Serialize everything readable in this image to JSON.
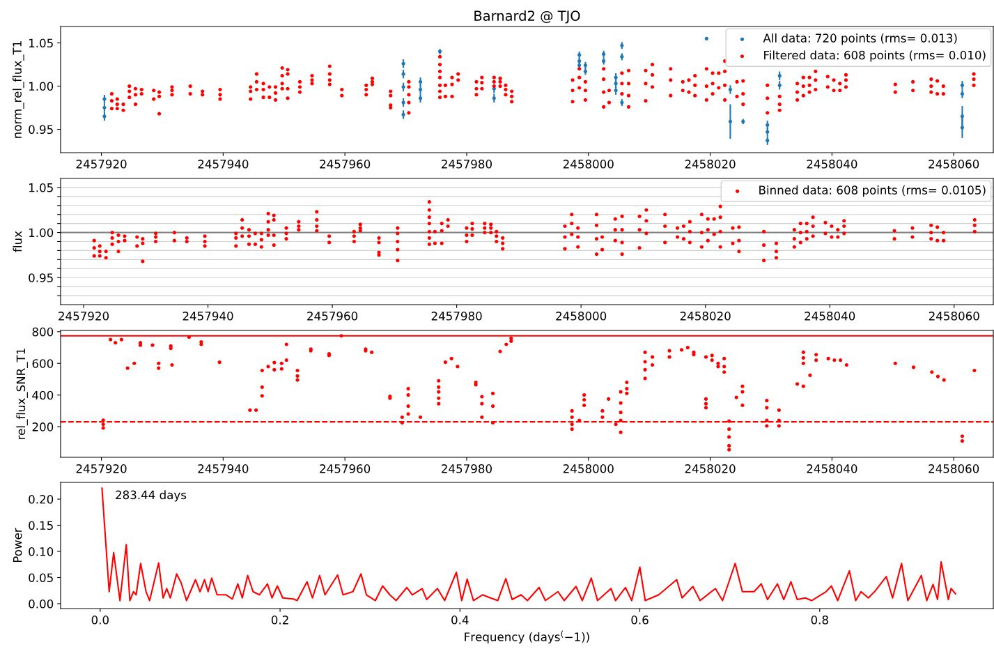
{
  "chart_data": [
    {
      "type": "scatter",
      "title": "Barnard2 @ TJO",
      "ylabel": "norm_rel_flux_T1",
      "xlim": [
        2457913.3,
        2458066.5
      ],
      "ylim": [
        0.923,
        1.069
      ],
      "xticks": [
        2457920,
        2457940,
        2457960,
        2457980,
        2458000,
        2458020,
        2458040,
        2458060
      ],
      "yticks": [
        0.95,
        {
          "value": 1.0,
          "label": "1.00"
        },
        {
          "value": 1.05,
          "label": "1.05"
        }
      ],
      "legend": "top right",
      "marker": "circle",
      "grid": false,
      "series": [
        {
          "name": "All data: 720 points (rms= 0.013)",
          "color": "#1f77b4",
          "x": [
            2457920.5,
            2457920.5,
            2457920.5,
            2457969.6,
            2457969.6,
            2457969.6,
            2457969.6,
            2457969.6,
            2457972.4,
            2457972.4,
            2457972.4,
            2457975.6,
            2457984.5,
            2457984.5,
            2457998.5,
            2457998.5,
            2457998.5,
            2457999.5,
            2457999.5,
            2458002.5,
            2458002.5,
            2458004.5,
            2458004.5,
            2458004.5,
            2458005.5,
            2458005.5,
            2458005.5,
            2458019.4,
            2458023.3,
            2458023.3,
            2458025.4,
            2458029.4,
            2458029.4,
            2458029.4,
            2458031.4,
            2458031.4,
            2458061.4,
            2458061.4,
            2458061.4,
            2458061.4
          ],
          "values": [
            0.985,
            0.975,
            0.965,
            1.026,
            1.014,
            0.999,
            0.981,
            0.967,
            1.005,
            0.996,
            0.986,
            1.04,
            0.997,
            0.986,
            1.036,
            1.029,
            1.024,
            1.024,
            1.017,
            1.037,
            1.029,
            1.01,
            1.003,
            0.995,
            1.047,
            1.034,
            0.981,
            1.055,
            0.996,
            0.959,
            0.959,
            0.955,
            0.947,
            0.937,
            1.012,
            1.001,
            1.001,
            0.991,
            0.965,
            0.952
          ],
          "errors": [
            0.005,
            0.005,
            0.005,
            0.005,
            0.005,
            0.005,
            0.005,
            0.005,
            0.005,
            0.005,
            0.005,
            0.003,
            0.005,
            0.005,
            0.004,
            0.004,
            0.004,
            0.004,
            0.004,
            0.004,
            0.004,
            0.005,
            0.005,
            0.005,
            0.004,
            0.004,
            0.004,
            0.002,
            0.005,
            0.02,
            0.003,
            0.005,
            0.005,
            0.005,
            0.005,
            0.005,
            0.005,
            0.005,
            0.012,
            0.012
          ]
        },
        {
          "name": "Filtered data: 608 points (rms= 0.010)",
          "color": "#ff0000",
          "x": [
            2457921.7,
            2457921.7,
            2457921.7,
            2457922.6,
            2457922.6,
            2457922.6,
            2457923.6,
            2457923.6,
            2457924.6,
            2457924.6,
            2457924.6,
            2457925.6,
            2457925.6,
            2457925.6,
            2457926.6,
            2457926.6,
            2457928.6,
            2457928.6,
            2457929.5,
            2457929.5,
            2457929.5,
            2457931.6,
            2457931.6,
            2457931.6,
            2457934.6,
            2457934.6,
            2457936.6,
            2457936.6,
            2457939.5,
            2457939.5,
            2457939.5,
            2457944.5,
            2457944.5,
            2457944.5,
            2457945.5,
            2457945.5,
            2457945.5,
            2457946.6,
            2457946.6,
            2457946.6,
            2457947.6,
            2457947.6,
            2457948.6,
            2457948.6,
            2457948.6,
            2457949.7,
            2457949.7,
            2457949.7,
            2457949.7,
            2457950.6,
            2457950.6,
            2457950.6,
            2457950.6,
            2457952.6,
            2457952.6,
            2457952.6,
            2457954.6,
            2457954.6,
            2457954.6,
            2457957.5,
            2457957.5,
            2457957.5,
            2457957.5,
            2457959.5,
            2457959.5,
            2457963.5,
            2457963.5,
            2457963.5,
            2457964.5,
            2457964.5,
            2457964.5,
            2457967.5,
            2457967.5,
            2457967.5,
            2457967.5,
            2457970.5,
            2457970.5,
            2457970.5,
            2457970.5,
            2457970.5,
            2457975.6,
            2457975.6,
            2457975.6,
            2457975.6,
            2457975.6,
            2457975.6,
            2457975.6,
            2457976.5,
            2457976.5,
            2457977.6,
            2457977.6,
            2457977.6,
            2457978.6,
            2457978.6,
            2457981.6,
            2457981.6,
            2457981.6,
            2457982.5,
            2457982.5,
            2457982.5,
            2457984.5,
            2457984.5,
            2457984.5,
            2457985.5,
            2457985.5,
            2457985.5,
            2457986.4,
            2457986.4,
            2457986.4,
            2457987.4,
            2457987.4,
            2457987.4,
            2457997.4,
            2457997.4,
            2457997.4,
            2457998.5,
            2457998.5,
            2457998.5,
            2457999.5,
            2457999.5,
            2457999.5,
            2458002.5,
            2458002.5,
            2458002.5,
            2458002.5,
            2458003.4,
            2458003.4,
            2458005.5,
            2458005.5,
            2458005.5,
            2458006.6,
            2458006.6,
            2458006.6,
            2458006.6,
            2458009.4,
            2458009.4,
            2458009.4,
            2458010.5,
            2458010.5,
            2458010.5,
            2458013.5,
            2458013.5,
            2458013.5,
            2458015.5,
            2458015.5,
            2458016.5,
            2458016.5,
            2458017.5,
            2458017.5,
            2458017.5,
            2458019.4,
            2458019.4,
            2458019.4,
            2458020.4,
            2458020.4,
            2458020.4,
            2458021.4,
            2458021.4,
            2458022.4,
            2458022.4,
            2458022.4,
            2458022.4,
            2458024.4,
            2458024.4,
            2458025.4,
            2458025.4,
            2458025.4,
            2458029.4,
            2458029.4,
            2458029.4,
            2458031.4,
            2458031.4,
            2458031.4,
            2458034.3,
            2458034.3,
            2458034.3,
            2458035.3,
            2458035.3,
            2458035.3,
            2458036.3,
            2458036.3,
            2458036.3,
            2458037.3,
            2458037.3,
            2458037.3,
            2458039.3,
            2458039.3,
            2458040.3,
            2458040.3,
            2458041.3,
            2458041.3,
            2458042.3,
            2458042.3,
            2458042.3,
            2458050.4,
            2458050.4,
            2458053.3,
            2458053.3,
            2458056.3,
            2458056.3,
            2458056.3,
            2458057.3,
            2458057.3,
            2458058.3,
            2458058.3,
            2458063.3,
            2458063.3,
            2458063.3
          ],
          "values": [
            0.991,
            0.983,
            0.974,
            0.985,
            0.979,
            0.974,
            0.979,
            0.972,
            1.0,
            0.994,
            0.987,
            0.997,
            0.99,
            0.979,
            0.996,
            0.991,
            0.995,
            0.985,
            0.993,
            0.988,
            0.968,
            0.999,
            0.995,
            0.99,
            1.0,
            0.991,
            0.994,
            0.99,
            0.996,
            0.99,
            0.985,
            0.999,
            0.994,
            0.985,
            1.014,
            1.005,
            0.996,
            1.003,
            0.996,
            0.987,
            0.999,
            0.987,
            0.999,
            0.992,
            0.984,
            1.021,
            1.012,
            1.003,
            0.997,
            1.019,
            1.014,
            0.997,
            0.986,
            1.005,
            0.999,
            0.993,
            1.012,
            1.007,
            1.003,
            1.023,
            1.014,
            1.007,
            1.002,
            0.996,
            0.989,
            1.001,
            0.996,
            0.99,
            1.009,
            1.005,
            1.002,
            0.994,
            0.989,
            0.978,
            0.975,
            1.005,
            0.999,
            0.99,
            0.981,
            0.969,
            1.034,
            1.025,
            1.017,
            1.01,
            1.001,
            0.994,
            0.987,
            1.001,
            0.988,
            1.01,
            1.002,
            0.988,
            1.014,
            1.007,
            1.005,
            0.997,
            0.99,
            1.01,
            1.004,
            0.997,
            1.01,
            1.005,
            1.0,
            1.009,
            1.005,
            1.0,
            1.001,
            0.996,
            0.99,
            0.994,
            0.988,
            0.982,
            1.007,
            0.995,
            0.982,
            1.02,
            1.01,
            0.998,
            1.005,
            0.995,
            0.984,
            1.02,
            1.008,
            0.993,
            0.976,
            0.995,
            0.981,
            1.015,
            1.003,
            0.991,
            1.018,
            1.003,
            0.989,
            0.976,
            1.018,
            1.003,
            0.983,
            1.025,
            1.013,
            0.999,
            1.02,
            1.007,
            0.989,
            1.005,
            0.995,
            1.007,
            0.993,
            1.012,
            1.001,
            0.989,
            1.02,
            1.0,
            0.984,
            1.015,
            1.003,
            0.991,
            1.015,
            0.998,
            1.029,
            1.017,
            1.001,
            0.984,
            1.005,
            0.988,
            1.006,
            0.991,
            0.979,
            1.001,
            0.986,
            0.969,
            0.988,
            0.979,
            0.972,
            1.003,
            0.993,
            0.984,
            1.01,
            1.0,
            0.989,
            1.01,
            1.001,
            0.993,
            1.017,
            1.007,
            0.996,
            1.011,
            0.999,
            1.007,
            0.995,
            1.003,
            0.995,
            1.013,
            1.007,
            0.999,
            1.002,
            0.993,
            1.005,
            0.995,
            1.008,
            1.0,
            0.993,
            1.006,
            0.991,
            1.0,
            0.991,
            1.014,
            1.008,
            1.001
          ]
        }
      ]
    },
    {
      "type": "scatter",
      "ylabel": "flux",
      "xlim": [
        2457916.3,
        2458066.3
      ],
      "ylim": [
        0.92,
        1.06
      ],
      "xticks": [
        2457920,
        2457940,
        2457960,
        2457980,
        2458000,
        2458020,
        2458040,
        2458060
      ],
      "yticks": [
        {
          "value": 0.93,
          "label": null
        },
        {
          "value": 0.94,
          "label": null
        },
        0.95,
        {
          "value": 0.96,
          "label": null
        },
        {
          "value": 0.97,
          "label": null
        },
        {
          "value": 0.98,
          "label": null
        },
        {
          "value": 0.99,
          "label": null
        },
        {
          "value": 1.0,
          "label": "1.00"
        },
        {
          "value": 1.01,
          "label": null
        },
        {
          "value": 1.02,
          "label": null
        },
        {
          "value": 1.03,
          "label": null
        },
        {
          "value": 1.04,
          "label": null
        },
        {
          "value": 1.05,
          "label": "1.05"
        }
      ],
      "grid": "y",
      "legend": "top right",
      "marker": "circle",
      "ref_lines": [
        {
          "axis": "y",
          "value": 1.0,
          "color": "#808080"
        }
      ],
      "series": [
        {
          "name": "Binned data: 608 points (rms= 0.0105)",
          "color": "#ff0000",
          "x": [
            2457921.7,
            2457921.7,
            2457921.7,
            2457922.6,
            2457922.6,
            2457922.6,
            2457923.6,
            2457923.6,
            2457924.6,
            2457924.6,
            2457924.6,
            2457925.6,
            2457925.6,
            2457925.6,
            2457926.6,
            2457926.6,
            2457928.6,
            2457928.6,
            2457929.5,
            2457929.5,
            2457929.5,
            2457931.6,
            2457931.6,
            2457931.6,
            2457934.6,
            2457934.6,
            2457936.6,
            2457936.6,
            2457939.5,
            2457939.5,
            2457939.5,
            2457944.5,
            2457944.5,
            2457944.5,
            2457945.5,
            2457945.5,
            2457945.5,
            2457946.6,
            2457946.6,
            2457946.6,
            2457947.6,
            2457947.6,
            2457948.6,
            2457948.6,
            2457948.6,
            2457949.7,
            2457949.7,
            2457949.7,
            2457949.7,
            2457950.6,
            2457950.6,
            2457950.6,
            2457950.6,
            2457952.6,
            2457952.6,
            2457952.6,
            2457954.6,
            2457954.6,
            2457954.6,
            2457957.5,
            2457957.5,
            2457957.5,
            2457957.5,
            2457959.5,
            2457959.5,
            2457963.5,
            2457963.5,
            2457963.5,
            2457964.5,
            2457964.5,
            2457964.5,
            2457967.5,
            2457967.5,
            2457967.5,
            2457967.5,
            2457970.5,
            2457970.5,
            2457970.5,
            2457970.5,
            2457970.5,
            2457975.6,
            2457975.6,
            2457975.6,
            2457975.6,
            2457975.6,
            2457975.6,
            2457975.6,
            2457976.5,
            2457976.5,
            2457977.6,
            2457977.6,
            2457977.6,
            2457978.6,
            2457978.6,
            2457981.6,
            2457981.6,
            2457981.6,
            2457982.5,
            2457982.5,
            2457982.5,
            2457984.5,
            2457984.5,
            2457984.5,
            2457985.5,
            2457985.5,
            2457985.5,
            2457986.4,
            2457986.4,
            2457986.4,
            2457987.4,
            2457987.4,
            2457987.4,
            2457997.4,
            2457997.4,
            2457997.4,
            2457998.5,
            2457998.5,
            2457998.5,
            2457999.5,
            2457999.5,
            2457999.5,
            2458002.5,
            2458002.5,
            2458002.5,
            2458002.5,
            2458003.4,
            2458003.4,
            2458005.5,
            2458005.5,
            2458005.5,
            2458006.6,
            2458006.6,
            2458006.6,
            2458006.6,
            2458009.4,
            2458009.4,
            2458009.4,
            2458010.5,
            2458010.5,
            2458010.5,
            2458013.5,
            2458013.5,
            2458013.5,
            2458015.5,
            2458015.5,
            2458016.5,
            2458016.5,
            2458017.5,
            2458017.5,
            2458017.5,
            2458019.4,
            2458019.4,
            2458019.4,
            2458020.4,
            2458020.4,
            2458020.4,
            2458021.4,
            2458021.4,
            2458022.4,
            2458022.4,
            2458022.4,
            2458022.4,
            2458024.4,
            2458024.4,
            2458025.4,
            2458025.4,
            2458025.4,
            2458029.4,
            2458029.4,
            2458029.4,
            2458031.4,
            2458031.4,
            2458031.4,
            2458034.3,
            2458034.3,
            2458034.3,
            2458035.3,
            2458035.3,
            2458035.3,
            2458036.3,
            2458036.3,
            2458036.3,
            2458037.3,
            2458037.3,
            2458037.3,
            2458039.3,
            2458039.3,
            2458040.3,
            2458040.3,
            2458041.3,
            2458041.3,
            2458042.3,
            2458042.3,
            2458042.3,
            2458050.4,
            2458050.4,
            2458053.3,
            2458053.3,
            2458056.3,
            2458056.3,
            2458056.3,
            2458057.3,
            2458057.3,
            2458058.3,
            2458058.3,
            2458063.3,
            2458063.3,
            2458063.3
          ],
          "values": [
            0.991,
            0.983,
            0.974,
            0.985,
            0.979,
            0.974,
            0.979,
            0.972,
            1.0,
            0.994,
            0.987,
            0.997,
            0.99,
            0.979,
            0.996,
            0.991,
            0.995,
            0.985,
            0.993,
            0.988,
            0.968,
            0.999,
            0.995,
            0.99,
            1.0,
            0.991,
            0.994,
            0.99,
            0.996,
            0.99,
            0.985,
            0.999,
            0.994,
            0.985,
            1.014,
            1.005,
            0.996,
            1.003,
            0.996,
            0.987,
            0.999,
            0.987,
            0.999,
            0.992,
            0.984,
            1.021,
            1.012,
            1.003,
            0.997,
            1.019,
            1.014,
            0.997,
            0.986,
            1.005,
            0.999,
            0.993,
            1.012,
            1.007,
            1.003,
            1.023,
            1.014,
            1.007,
            1.002,
            0.996,
            0.989,
            1.001,
            0.996,
            0.99,
            1.009,
            1.005,
            1.002,
            0.994,
            0.989,
            0.978,
            0.975,
            1.005,
            0.999,
            0.99,
            0.981,
            0.969,
            1.034,
            1.025,
            1.017,
            1.01,
            1.001,
            0.994,
            0.987,
            1.001,
            0.988,
            1.01,
            1.002,
            0.988,
            1.014,
            1.007,
            1.005,
            0.997,
            0.99,
            1.01,
            1.004,
            0.997,
            1.01,
            1.005,
            1.0,
            1.009,
            1.005,
            1.0,
            1.001,
            0.996,
            0.99,
            0.994,
            0.988,
            0.982,
            1.007,
            0.995,
            0.982,
            1.02,
            1.01,
            0.998,
            1.005,
            0.995,
            0.984,
            1.02,
            1.008,
            0.993,
            0.976,
            0.995,
            0.981,
            1.015,
            1.003,
            0.991,
            1.018,
            1.003,
            0.989,
            0.976,
            1.018,
            1.003,
            0.983,
            1.025,
            1.013,
            0.999,
            1.02,
            1.007,
            0.989,
            1.005,
            0.995,
            1.007,
            0.993,
            1.012,
            1.001,
            0.989,
            1.02,
            1.0,
            0.984,
            1.015,
            1.003,
            0.991,
            1.015,
            0.998,
            1.029,
            1.017,
            1.001,
            0.984,
            1.005,
            0.988,
            1.006,
            0.991,
            0.979,
            1.001,
            0.986,
            0.969,
            0.988,
            0.979,
            0.972,
            1.003,
            0.993,
            0.984,
            1.01,
            1.0,
            0.989,
            1.01,
            1.001,
            0.993,
            1.017,
            1.007,
            0.996,
            1.011,
            0.999,
            1.007,
            0.995,
            1.003,
            0.995,
            1.013,
            1.007,
            0.999,
            1.002,
            0.993,
            1.005,
            0.995,
            1.008,
            1.0,
            0.993,
            1.006,
            0.991,
            1.0,
            0.991,
            1.014,
            1.008,
            1.001
          ]
        }
      ]
    },
    {
      "type": "scatter",
      "ylabel": "rel_flux_SNR_T1",
      "xlim": [
        2457913.3,
        2458066.5
      ],
      "ylim": [
        7,
        808
      ],
      "xticks": [
        2457920,
        2457940,
        2457960,
        2457980,
        2458000,
        2458020,
        2458040,
        2458060
      ],
      "yticks": [
        200,
        400,
        600,
        800
      ],
      "marker": "circle",
      "grid": false,
      "ref_lines": [
        {
          "axis": "y",
          "value": 774,
          "color": "#ff0000",
          "line_style": "solid"
        },
        {
          "axis": "y",
          "value": 231,
          "color": "#ff0000",
          "line_style": "dashed"
        }
      ],
      "series": [
        {
          "color": "#ff0000",
          "x": [
            2457920.3,
            2457920.3,
            2457920.3,
            2457921.5,
            2457922.3,
            2457923.3,
            2457924.3,
            2457925.4,
            2457926.4,
            2457926.4,
            2457928.4,
            2457929.4,
            2457929.4,
            2457931.4,
            2457931.4,
            2457931.6,
            2457934.4,
            2457936.4,
            2457936.4,
            2457939.4,
            2457944.4,
            2457945.4,
            2457946.4,
            2457946.4,
            2457946.4,
            2457947.4,
            2457948.4,
            2457948.4,
            2457949.6,
            2457949.6,
            2457950.4,
            2457950.4,
            2457952.2,
            2457952.2,
            2457952.2,
            2457954.4,
            2457954.4,
            2457957.4,
            2457957.4,
            2457959.4,
            2457963.4,
            2457963.4,
            2457964.4,
            2457967.4,
            2457967.4,
            2457969.4,
            2457969.4,
            2457970.4,
            2457970.4,
            2457970.4,
            2457970.4,
            2457972.4,
            2457975.4,
            2457975.4,
            2457975.4,
            2457975.4,
            2457975.4,
            2457976.5,
            2457977.5,
            2457978.5,
            2457981.5,
            2457981.5,
            2457982.5,
            2457982.5,
            2457982.5,
            2457984.3,
            2457984.3,
            2457984.3,
            2457985.5,
            2457986.5,
            2457987.3,
            2457987.3,
            2457997.3,
            2457997.3,
            2457997.3,
            2457997.3,
            2457998.5,
            2457999.3,
            2457999.3,
            2457999.3,
            2458002.3,
            2458002.3,
            2458003.3,
            2458004.5,
            2458005.3,
            2458005.3,
            2458005.3,
            2458005.3,
            2458005.3,
            2458006.3,
            2458006.3,
            2458006.3,
            2458009.3,
            2458009.3,
            2458009.3,
            2458009.3,
            2458010.5,
            2458010.5,
            2458013.3,
            2458013.3,
            2458015.3,
            2458016.3,
            2458017.3,
            2458017.3,
            2458019.3,
            2458019.3,
            2458019.3,
            2458019.3,
            2458020.3,
            2458020.3,
            2458021.3,
            2458021.3,
            2458022.3,
            2458022.3,
            2458022.3,
            2458023.1,
            2458023.1,
            2458023.1,
            2458023.1,
            2458023.1,
            2458024.3,
            2458025.3,
            2458025.3,
            2458025.3,
            2458029.3,
            2458029.3,
            2458029.3,
            2458029.3,
            2458031.3,
            2458031.3,
            2458031.3,
            2458034.3,
            2458035.3,
            2458035.3,
            2458035.3,
            2458035.3,
            2458036.4,
            2458037.4,
            2458037.4,
            2458039.4,
            2458040.4,
            2458041.4,
            2458042.4,
            2458050.4,
            2458053.4,
            2458056.4,
            2458057.4,
            2458058.4,
            2458061.4,
            2458061.4,
            2458063.4
          ],
          "values": [
            241,
            215,
            192,
            750,
            730,
            750,
            570,
            600,
            730,
            715,
            715,
            600,
            570,
            710,
            695,
            590,
            766,
            735,
            720,
            607,
            305,
            305,
            555,
            450,
            395,
            580,
            605,
            560,
            600,
            565,
            720,
            620,
            555,
            520,
            495,
            690,
            680,
            660,
            650,
            774,
            690,
            680,
            670,
            392,
            380,
            260,
            225,
            440,
            400,
            330,
            280,
            260,
            490,
            450,
            420,
            380,
            345,
            607,
            630,
            580,
            480,
            465,
            390,
            345,
            260,
            410,
            330,
            225,
            675,
            720,
            758,
            740,
            300,
            260,
            215,
            185,
            240,
            400,
            370,
            335,
            300,
            260,
            375,
            215,
            420,
            350,
            290,
            240,
            165,
            480,
            440,
            410,
            670,
            610,
            560,
            505,
            640,
            590,
            680,
            640,
            685,
            700,
            670,
            655,
            640,
            375,
            345,
            320,
            650,
            620,
            580,
            600,
            630,
            580,
            545,
            235,
            185,
            135,
            80,
            55,
            385,
            455,
            420,
            335,
            365,
            320,
            240,
            205,
            305,
            240,
            205,
            470,
            455,
            670,
            635,
            600,
            525,
            655,
            620,
            630,
            620,
            620,
            590,
            600,
            575,
            545,
            517,
            495,
            140,
            110,
            555
          ]
        }
      ]
    },
    {
      "type": "line",
      "xlabel": "Frequency (days$^{(}$−1))",
      "ylabel": "Power",
      "xlim": [
        -0.044,
        0.993
      ],
      "ylim": [
        -0.0093,
        0.232
      ],
      "xticks": [
        {
          "value": 0.0,
          "label": "0.0"
        },
        0.2,
        0.4,
        0.6,
        0.8
      ],
      "yticks": [
        {
          "value": 0.0,
          "label": "0.00"
        },
        {
          "value": 0.05,
          "label": "0.05"
        },
        {
          "value": 0.1,
          "label": "0.10"
        },
        {
          "value": 0.15,
          "label": "0.15"
        },
        {
          "value": 0.2,
          "label": "0.20"
        }
      ],
      "grid": false,
      "line_style": "solid",
      "annotations": [
        {
          "text": "283.44 days",
          "x": 0.0035,
          "y": 0.221
        }
      ],
      "series": [
        {
          "color": "#ff0000",
          "x": [
            0.002,
            0.01,
            0.015,
            0.022,
            0.029,
            0.033,
            0.037,
            0.04,
            0.045,
            0.051,
            0.055,
            0.065,
            0.07,
            0.074,
            0.078,
            0.085,
            0.09,
            0.096,
            0.106,
            0.111,
            0.116,
            0.12,
            0.124,
            0.13,
            0.14,
            0.147,
            0.153,
            0.158,
            0.164,
            0.17,
            0.177,
            0.186,
            0.191,
            0.197,
            0.203,
            0.215,
            0.219,
            0.23,
            0.236,
            0.244,
            0.25,
            0.264,
            0.27,
            0.281,
            0.29,
            0.296,
            0.306,
            0.314,
            0.322,
            0.329,
            0.341,
            0.347,
            0.358,
            0.363,
            0.375,
            0.383,
            0.396,
            0.402,
            0.408,
            0.415,
            0.425,
            0.434,
            0.442,
            0.451,
            0.458,
            0.468,
            0.475,
            0.488,
            0.495,
            0.509,
            0.516,
            0.529,
            0.536,
            0.546,
            0.553,
            0.568,
            0.573,
            0.584,
            0.591,
            0.6,
            0.606,
            0.621,
            0.641,
            0.647,
            0.659,
            0.667,
            0.684,
            0.692,
            0.706,
            0.714,
            0.727,
            0.735,
            0.742,
            0.753,
            0.76,
            0.768,
            0.775,
            0.784,
            0.791,
            0.807,
            0.813,
            0.82,
            0.833,
            0.84,
            0.846,
            0.854,
            0.861,
            0.874,
            0.881,
            0.891,
            0.898,
            0.913,
            0.919,
            0.926,
            0.931,
            0.935,
            0.943,
            0.946,
            0.951
          ],
          "values": [
            0.221,
            0.023,
            0.098,
            0.006,
            0.113,
            0.006,
            0.023,
            0.017,
            0.077,
            0.023,
            0.006,
            0.078,
            0.011,
            0.029,
            0.011,
            0.057,
            0.04,
            0.006,
            0.046,
            0.023,
            0.046,
            0.023,
            0.049,
            0.017,
            0.017,
            0.009,
            0.038,
            0.011,
            0.054,
            0.023,
            0.017,
            0.038,
            0.011,
            0.034,
            0.011,
            0.009,
            0.006,
            0.042,
            0.011,
            0.054,
            0.017,
            0.055,
            0.017,
            0.023,
            0.057,
            0.017,
            0.006,
            0.034,
            0.017,
            0.006,
            0.031,
            0.017,
            0.029,
            0.008,
            0.029,
            0.006,
            0.06,
            0.006,
            0.047,
            0.006,
            0.017,
            0.011,
            0.006,
            0.048,
            0.008,
            0.017,
            0.006,
            0.031,
            0.006,
            0.023,
            0.006,
            0.033,
            0.006,
            0.049,
            0.006,
            0.029,
            0.006,
            0.031,
            0.006,
            0.07,
            0.006,
            0.017,
            0.046,
            0.011,
            0.033,
            0.006,
            0.029,
            0.006,
            0.077,
            0.023,
            0.023,
            0.038,
            0.008,
            0.038,
            0.008,
            0.042,
            0.008,
            0.011,
            0.006,
            0.023,
            0.034,
            0.006,
            0.063,
            0.006,
            0.023,
            0.011,
            0.023,
            0.052,
            0.011,
            0.077,
            0.006,
            0.054,
            0.006,
            0.037,
            0.008,
            0.08,
            0.008,
            0.029,
            0.019
          ]
        }
      ]
    }
  ]
}
